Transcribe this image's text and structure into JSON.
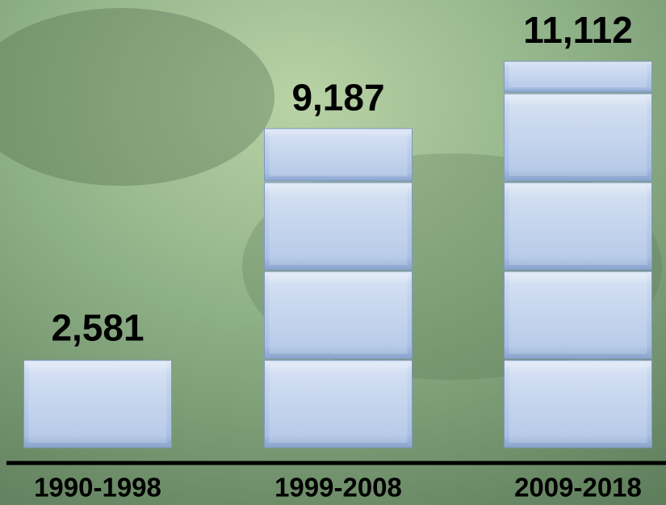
{
  "chart_data": {
    "type": "bar",
    "categories": [
      "1990-1998",
      "1999-2008",
      "2009-2018"
    ],
    "values": [
      2581,
      9187,
      11112
    ],
    "value_labels": [
      "2,581",
      "9,187",
      "11,112"
    ]
  }
}
